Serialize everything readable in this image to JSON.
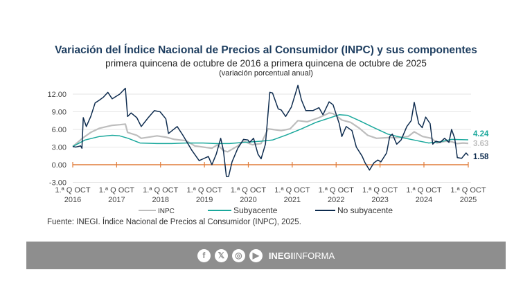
{
  "header": {
    "title": "Variación del Índice Nacional de Precios al Consumidor (INPC) y sus componentes",
    "subtitle": "primera quincena de octubre de 2016 a primera quincena de octubre de 2025",
    "units": "(variación porcentual anual)"
  },
  "chart_data": {
    "type": "line",
    "title": "Variación del Índice Nacional de Precios al Consumidor (INPC) y sus componentes",
    "ylim": [
      -3,
      13.5
    ],
    "yticks": [
      "12.00",
      "9.00",
      "6.00",
      "3.00",
      "0.00",
      "-3.00"
    ],
    "ytick_values": [
      12,
      9,
      6,
      3,
      0,
      -3
    ],
    "xlim": [
      2016.78,
      2025.79
    ],
    "xticks": [
      {
        "line1": "1.ª Q OCT",
        "line2": "2016"
      },
      {
        "line1": "1.ª Q OCT",
        "line2": "2017"
      },
      {
        "line1": "1.ª Q OCT",
        "line2": "2018"
      },
      {
        "line1": "1.ª Q OCT",
        "line2": "2019"
      },
      {
        "line1": "1.ª Q OCT",
        "line2": "2020"
      },
      {
        "line1": "1.ª Q OCT",
        "line2": "2021"
      },
      {
        "line1": "1.ª Q OCT",
        "line2": "2022"
      },
      {
        "line1": "1.ª Q OCT",
        "line2": "2023"
      },
      {
        "line1": "1.ª Q OCT",
        "line2": "2024"
      },
      {
        "line1": "1.ª Q OCT",
        "line2": "2025"
      }
    ],
    "xtick_values": [
      2016.78,
      2017.78,
      2018.78,
      2019.78,
      2020.78,
      2021.78,
      2022.78,
      2023.78,
      2024.78,
      2025.79
    ],
    "grid": true,
    "legend_placement": "bottom",
    "zero_line_color": "#e07b39",
    "series": [
      {
        "name": "INPC",
        "color": "#bdbdbd",
        "end_label": "3.63",
        "x": [
          2016.78,
          2017.02,
          2017.19,
          2017.39,
          2017.68,
          2017.85,
          2017.98,
          2018.03,
          2018.24,
          2018.34,
          2018.7,
          2018.9,
          2019.1,
          2019.36,
          2019.56,
          2019.75,
          2019.95,
          2020.08,
          2020.21,
          2020.31,
          2020.54,
          2020.67,
          2020.87,
          2021.07,
          2021.23,
          2021.33,
          2021.53,
          2021.73,
          2021.91,
          2022.12,
          2022.39,
          2022.62,
          2022.71,
          2022.91,
          2023.11,
          2023.31,
          2023.5,
          2023.7,
          2023.96,
          2024.16,
          2024.42,
          2024.56,
          2024.75,
          2024.95,
          2025.08,
          2025.28,
          2025.41,
          2025.54,
          2025.67,
          2025.79
        ],
        "y": [
          3.1,
          4.6,
          5.5,
          6.2,
          6.7,
          6.8,
          6.9,
          5.5,
          5.0,
          4.5,
          4.9,
          4.7,
          4.3,
          4.1,
          3.2,
          3.0,
          2.8,
          3.4,
          2.4,
          2.2,
          3.2,
          4.0,
          3.4,
          3.6,
          6.1,
          6.0,
          5.8,
          6.1,
          7.5,
          7.3,
          8.0,
          8.8,
          8.7,
          7.6,
          7.2,
          6.2,
          5.0,
          4.5,
          4.6,
          4.6,
          4.8,
          5.6,
          4.8,
          4.5,
          3.7,
          4.0,
          3.9,
          3.6,
          3.7,
          3.63
        ]
      },
      {
        "name": "Subyacente",
        "color": "#1aa89c",
        "end_label": "4.24",
        "x": [
          2016.78,
          2017.06,
          2017.39,
          2017.68,
          2017.85,
          2018.04,
          2018.31,
          2018.7,
          2019.03,
          2019.36,
          2019.75,
          2020.02,
          2020.35,
          2020.67,
          2021.07,
          2021.33,
          2021.66,
          2021.99,
          2022.32,
          2022.65,
          2022.85,
          2023.04,
          2023.31,
          2023.64,
          2023.96,
          2024.29,
          2024.62,
          2024.89,
          2025.15,
          2025.41,
          2025.79
        ],
        "y": [
          3.1,
          4.2,
          4.8,
          5.0,
          4.9,
          4.5,
          3.7,
          3.6,
          3.6,
          3.7,
          3.7,
          3.6,
          3.6,
          3.8,
          4.0,
          4.2,
          5.1,
          6.1,
          7.2,
          8.0,
          8.5,
          8.4,
          7.5,
          6.3,
          5.2,
          4.6,
          4.1,
          3.7,
          3.9,
          4.3,
          4.24
        ]
      },
      {
        "name": "No subyacente",
        "color": "#0d2b4e",
        "end_label": "1.58",
        "x": [
          2016.78,
          2016.85,
          2016.96,
          2016.99,
          2017.02,
          2017.09,
          2017.19,
          2017.29,
          2017.39,
          2017.48,
          2017.58,
          2017.68,
          2017.85,
          2017.98,
          2018.03,
          2018.11,
          2018.24,
          2018.34,
          2018.5,
          2018.64,
          2018.77,
          2018.9,
          2018.96,
          2019.16,
          2019.29,
          2019.49,
          2019.66,
          2019.75,
          2019.87,
          2019.95,
          2020.05,
          2020.15,
          2020.21,
          2020.28,
          2020.33,
          2020.41,
          2020.54,
          2020.67,
          2020.77,
          2020.81,
          2020.9,
          2021.0,
          2021.07,
          2021.17,
          2021.27,
          2021.33,
          2021.46,
          2021.53,
          2021.63,
          2021.76,
          2021.91,
          2021.99,
          2022.09,
          2022.25,
          2022.39,
          2022.48,
          2022.62,
          2022.71,
          2022.85,
          2022.91,
          2023.01,
          2023.14,
          2023.24,
          2023.37,
          2023.44,
          2023.54,
          2023.64,
          2023.73,
          2023.8,
          2023.93,
          2024.0,
          2024.06,
          2024.16,
          2024.26,
          2024.39,
          2024.49,
          2024.56,
          2024.66,
          2024.74,
          2024.82,
          2024.92,
          2024.98,
          2025.05,
          2025.15,
          2025.25,
          2025.35,
          2025.41,
          2025.48,
          2025.54,
          2025.64,
          2025.74,
          2025.79
        ],
        "y": [
          3.1,
          3.0,
          3.2,
          2.8,
          8.0,
          6.5,
          8.2,
          10.5,
          11.0,
          11.5,
          12.3,
          11.2,
          12.0,
          13.0,
          8.2,
          8.8,
          8.0,
          6.5,
          8.0,
          9.2,
          9.0,
          7.8,
          5.3,
          6.5,
          5.0,
          2.5,
          0.7,
          1.0,
          1.4,
          0.0,
          1.8,
          4.5,
          2.5,
          -2.0,
          -2.0,
          0.5,
          2.8,
          4.3,
          4.2,
          3.8,
          4.5,
          1.8,
          1.0,
          3.5,
          12.3,
          12.2,
          9.5,
          9.3,
          8.2,
          9.8,
          13.5,
          11.0,
          9.2,
          9.2,
          9.7,
          8.5,
          10.7,
          10.2,
          7.0,
          4.8,
          6.5,
          5.8,
          3.0,
          1.5,
          0.3,
          -0.9,
          0.3,
          0.8,
          0.5,
          2.0,
          4.8,
          5.2,
          3.5,
          4.2,
          6.5,
          7.5,
          10.6,
          7.0,
          6.3,
          8.1,
          7.0,
          3.5,
          4.0,
          3.8,
          4.5,
          3.8,
          6.0,
          4.5,
          1.2,
          1.1,
          2.0,
          1.58
        ]
      }
    ]
  },
  "legend": {
    "inpc": "INPC",
    "sub": "Subyacente",
    "nosub": "No subyacente"
  },
  "source": "Fuente: INEGI. Índice Nacional de Precios al Consumidor (INPC), 2025.",
  "footer": {
    "icons": [
      "facebook-icon",
      "x-icon",
      "instagram-icon",
      "youtube-icon"
    ],
    "brand_bold": "INEGI",
    "brand_light": "INFORMA",
    "bar_color": "#8e8e8e"
  }
}
